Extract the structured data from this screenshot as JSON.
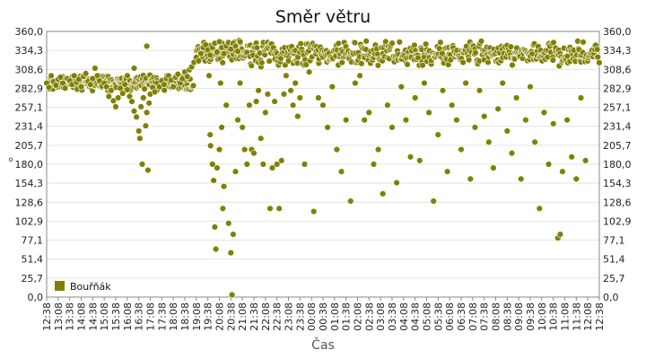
{
  "chart_data": {
    "type": "scatter",
    "title": "Směr větru",
    "xlabel": "Čas",
    "ylabel": "°",
    "ylim": [
      0,
      360
    ],
    "yticks": [
      "0,0",
      "25,7",
      "51,4",
      "77,1",
      "102,9",
      "128,6",
      "154,3",
      "180,0",
      "205,7",
      "231,4",
      "257,1",
      "282,9",
      "308,6",
      "334,3",
      "360,0"
    ],
    "yticks_right": [
      "0,0",
      "25,7",
      "51,4",
      "77,1",
      "102,9",
      "128,6",
      "154,3",
      "180,0",
      "205,7",
      "231,4",
      "257,1",
      "282,9",
      "308,6",
      "334,3",
      "360,0"
    ],
    "xticks": [
      "12:38",
      "13:08",
      "13:38",
      "14:08",
      "14:38",
      "15:08",
      "15:38",
      "16:08",
      "16:38",
      "17:08",
      "17:38",
      "18:08",
      "18:38",
      "19:08",
      "19:38",
      "20:08",
      "20:38",
      "21:08",
      "21:38",
      "22:08",
      "22:38",
      "23:08",
      "23:38",
      "00:08",
      "00:38",
      "01:08",
      "01:38",
      "02:08",
      "02:38",
      "03:08",
      "03:38",
      "04:08",
      "04:38",
      "05:08",
      "05:38",
      "06:08",
      "06:38",
      "07:08",
      "07:38",
      "08:08",
      "08:38",
      "09:08",
      "09:38",
      "10:08",
      "10:38",
      "11:08",
      "11:38",
      "12:08",
      "12:38"
    ],
    "x_range_hours": [
      0,
      24
    ],
    "grid": true,
    "legend": "bottom-left",
    "series": [
      {
        "name": "Bouřňák",
        "color": "#808000",
        "points": [
          [
            0.0,
            290
          ],
          [
            0.1,
            284
          ],
          [
            0.2,
            300
          ],
          [
            0.3,
            292
          ],
          [
            0.4,
            287
          ],
          [
            0.5,
            295
          ],
          [
            0.6,
            298
          ],
          [
            0.7,
            290
          ],
          [
            0.8,
            283
          ],
          [
            0.9,
            296
          ],
          [
            1.0,
            293
          ],
          [
            1.1,
            288
          ],
          [
            1.2,
            300
          ],
          [
            1.3,
            291
          ],
          [
            1.4,
            295
          ],
          [
            1.5,
            285
          ],
          [
            1.6,
            299
          ],
          [
            1.7,
            303
          ],
          [
            1.8,
            292
          ],
          [
            1.9,
            288
          ],
          [
            2.0,
            296
          ],
          [
            2.1,
            310
          ],
          [
            2.2,
            300
          ],
          [
            2.3,
            293
          ],
          [
            2.4,
            286
          ],
          [
            2.5,
            290
          ],
          [
            2.6,
            285
          ],
          [
            2.7,
            272
          ],
          [
            2.8,
            280
          ],
          [
            2.9,
            266
          ],
          [
            3.0,
            258
          ],
          [
            3.1,
            270
          ],
          [
            3.2,
            283
          ],
          [
            3.3,
            276
          ],
          [
            3.4,
            288
          ],
          [
            3.5,
            281
          ],
          [
            3.6,
            272
          ],
          [
            3.7,
            265
          ],
          [
            3.8,
            252
          ],
          [
            3.9,
            244
          ],
          [
            4.0,
            225
          ],
          [
            4.05,
            215
          ],
          [
            4.1,
            258
          ],
          [
            4.15,
            180
          ],
          [
            4.2,
            270
          ],
          [
            4.25,
            282
          ],
          [
            4.3,
            232
          ],
          [
            4.35,
            250
          ],
          [
            4.4,
            172
          ],
          [
            4.45,
            263
          ],
          [
            4.5,
            275
          ],
          [
            4.6,
            284
          ],
          [
            4.7,
            278
          ],
          [
            4.8,
            290
          ],
          [
            4.9,
            285
          ],
          [
            5.0,
            293
          ],
          [
            5.1,
            288
          ],
          [
            5.2,
            296
          ],
          [
            5.3,
            300
          ],
          [
            5.4,
            294
          ],
          [
            5.5,
            285
          ],
          [
            5.6,
            298
          ],
          [
            5.7,
            302
          ],
          [
            5.8,
            290
          ],
          [
            5.9,
            296
          ],
          [
            6.0,
            305
          ],
          [
            6.1,
            299
          ],
          [
            6.2,
            308
          ],
          [
            6.3,
            312
          ],
          [
            6.4,
            318
          ],
          [
            6.5,
            325
          ],
          [
            6.6,
            320
          ],
          [
            6.7,
            330
          ],
          [
            6.8,
            338
          ],
          [
            6.9,
            342
          ],
          [
            7.0,
            335
          ],
          [
            7.1,
            328
          ],
          [
            7.2,
            338
          ],
          [
            7.3,
            344
          ],
          [
            7.4,
            332
          ],
          [
            7.5,
            346
          ],
          [
            7.6,
            338
          ],
          [
            7.7,
            330
          ],
          [
            7.8,
            340
          ],
          [
            7.9,
            345
          ],
          [
            8.0,
            336
          ],
          [
            8.1,
            344
          ],
          [
            8.2,
            340
          ],
          [
            8.3,
            333
          ],
          [
            8.4,
            346
          ],
          [
            4.35,
            340
          ],
          [
            3.8,
            310
          ],
          [
            7.05,
            300
          ],
          [
            7.1,
            220
          ],
          [
            7.12,
            205
          ],
          [
            7.2,
            180
          ],
          [
            7.25,
            158
          ],
          [
            7.3,
            95
          ],
          [
            7.35,
            65
          ],
          [
            7.4,
            175
          ],
          [
            7.5,
            200
          ],
          [
            7.55,
            290
          ],
          [
            7.6,
            230
          ],
          [
            7.65,
            120
          ],
          [
            7.7,
            150
          ],
          [
            7.8,
            260
          ],
          [
            7.9,
            100
          ],
          [
            8.0,
            60
          ],
          [
            8.05,
            3
          ],
          [
            8.1,
            85
          ],
          [
            8.2,
            170
          ],
          [
            8.3,
            240
          ],
          [
            8.4,
            290
          ],
          [
            8.5,
            230
          ],
          [
            8.6,
            200
          ],
          [
            8.7,
            180
          ],
          [
            8.8,
            260
          ],
          [
            8.9,
            200
          ],
          [
            9.0,
            195
          ],
          [
            9.1,
            265
          ],
          [
            9.2,
            280
          ],
          [
            9.3,
            215
          ],
          [
            9.4,
            180
          ],
          [
            9.5,
            250
          ],
          [
            9.6,
            275
          ],
          [
            9.7,
            120
          ],
          [
            9.8,
            175
          ],
          [
            9.9,
            265
          ],
          [
            10.0,
            180
          ],
          [
            10.1,
            120
          ],
          [
            10.2,
            185
          ],
          [
            10.3,
            275
          ],
          [
            10.4,
            300
          ],
          [
            10.5,
            320
          ],
          [
            10.6,
            280
          ],
          [
            10.7,
            260
          ],
          [
            10.8,
            290
          ],
          [
            10.9,
            245
          ],
          [
            11.0,
            270
          ],
          [
            11.2,
            180
          ],
          [
            11.4,
            305
          ],
          [
            11.6,
            116
          ],
          [
            11.8,
            270
          ],
          [
            12.0,
            260
          ],
          [
            12.2,
            230
          ],
          [
            12.4,
            285
          ],
          [
            12.6,
            200
          ],
          [
            12.8,
            170
          ],
          [
            13.0,
            240
          ],
          [
            13.2,
            130
          ],
          [
            13.4,
            290
          ],
          [
            13.6,
            300
          ],
          [
            13.8,
            240
          ],
          [
            14.0,
            250
          ],
          [
            14.2,
            180
          ],
          [
            14.4,
            200
          ],
          [
            14.6,
            140
          ],
          [
            14.8,
            260
          ],
          [
            15.0,
            230
          ],
          [
            15.2,
            155
          ],
          [
            15.4,
            285
          ],
          [
            15.6,
            240
          ],
          [
            15.8,
            190
          ],
          [
            16.0,
            270
          ],
          [
            16.2,
            185
          ],
          [
            16.4,
            290
          ],
          [
            16.6,
            250
          ],
          [
            16.8,
            130
          ],
          [
            17.0,
            220
          ],
          [
            17.2,
            280
          ],
          [
            17.4,
            170
          ],
          [
            17.6,
            260
          ],
          [
            17.8,
            240
          ],
          [
            18.0,
            200
          ],
          [
            18.2,
            290
          ],
          [
            18.4,
            160
          ],
          [
            18.6,
            230
          ],
          [
            18.8,
            280
          ],
          [
            19.0,
            245
          ],
          [
            19.2,
            210
          ],
          [
            19.4,
            175
          ],
          [
            19.6,
            255
          ],
          [
            19.8,
            290
          ],
          [
            20.0,
            225
          ],
          [
            20.2,
            195
          ],
          [
            20.4,
            270
          ],
          [
            20.6,
            160
          ],
          [
            20.8,
            240
          ],
          [
            21.0,
            285
          ],
          [
            21.2,
            210
          ],
          [
            21.4,
            120
          ],
          [
            21.6,
            250
          ],
          [
            21.8,
            180
          ],
          [
            22.0,
            235
          ],
          [
            22.2,
            80
          ],
          [
            22.3,
            85
          ],
          [
            22.4,
            170
          ],
          [
            22.6,
            240
          ],
          [
            22.8,
            190
          ],
          [
            23.0,
            160
          ],
          [
            23.2,
            270
          ],
          [
            23.4,
            185
          ]
        ],
        "band": {
          "start": 6.5,
          "end": 24.0,
          "mean": 330,
          "spread": 14
        }
      }
    ]
  }
}
